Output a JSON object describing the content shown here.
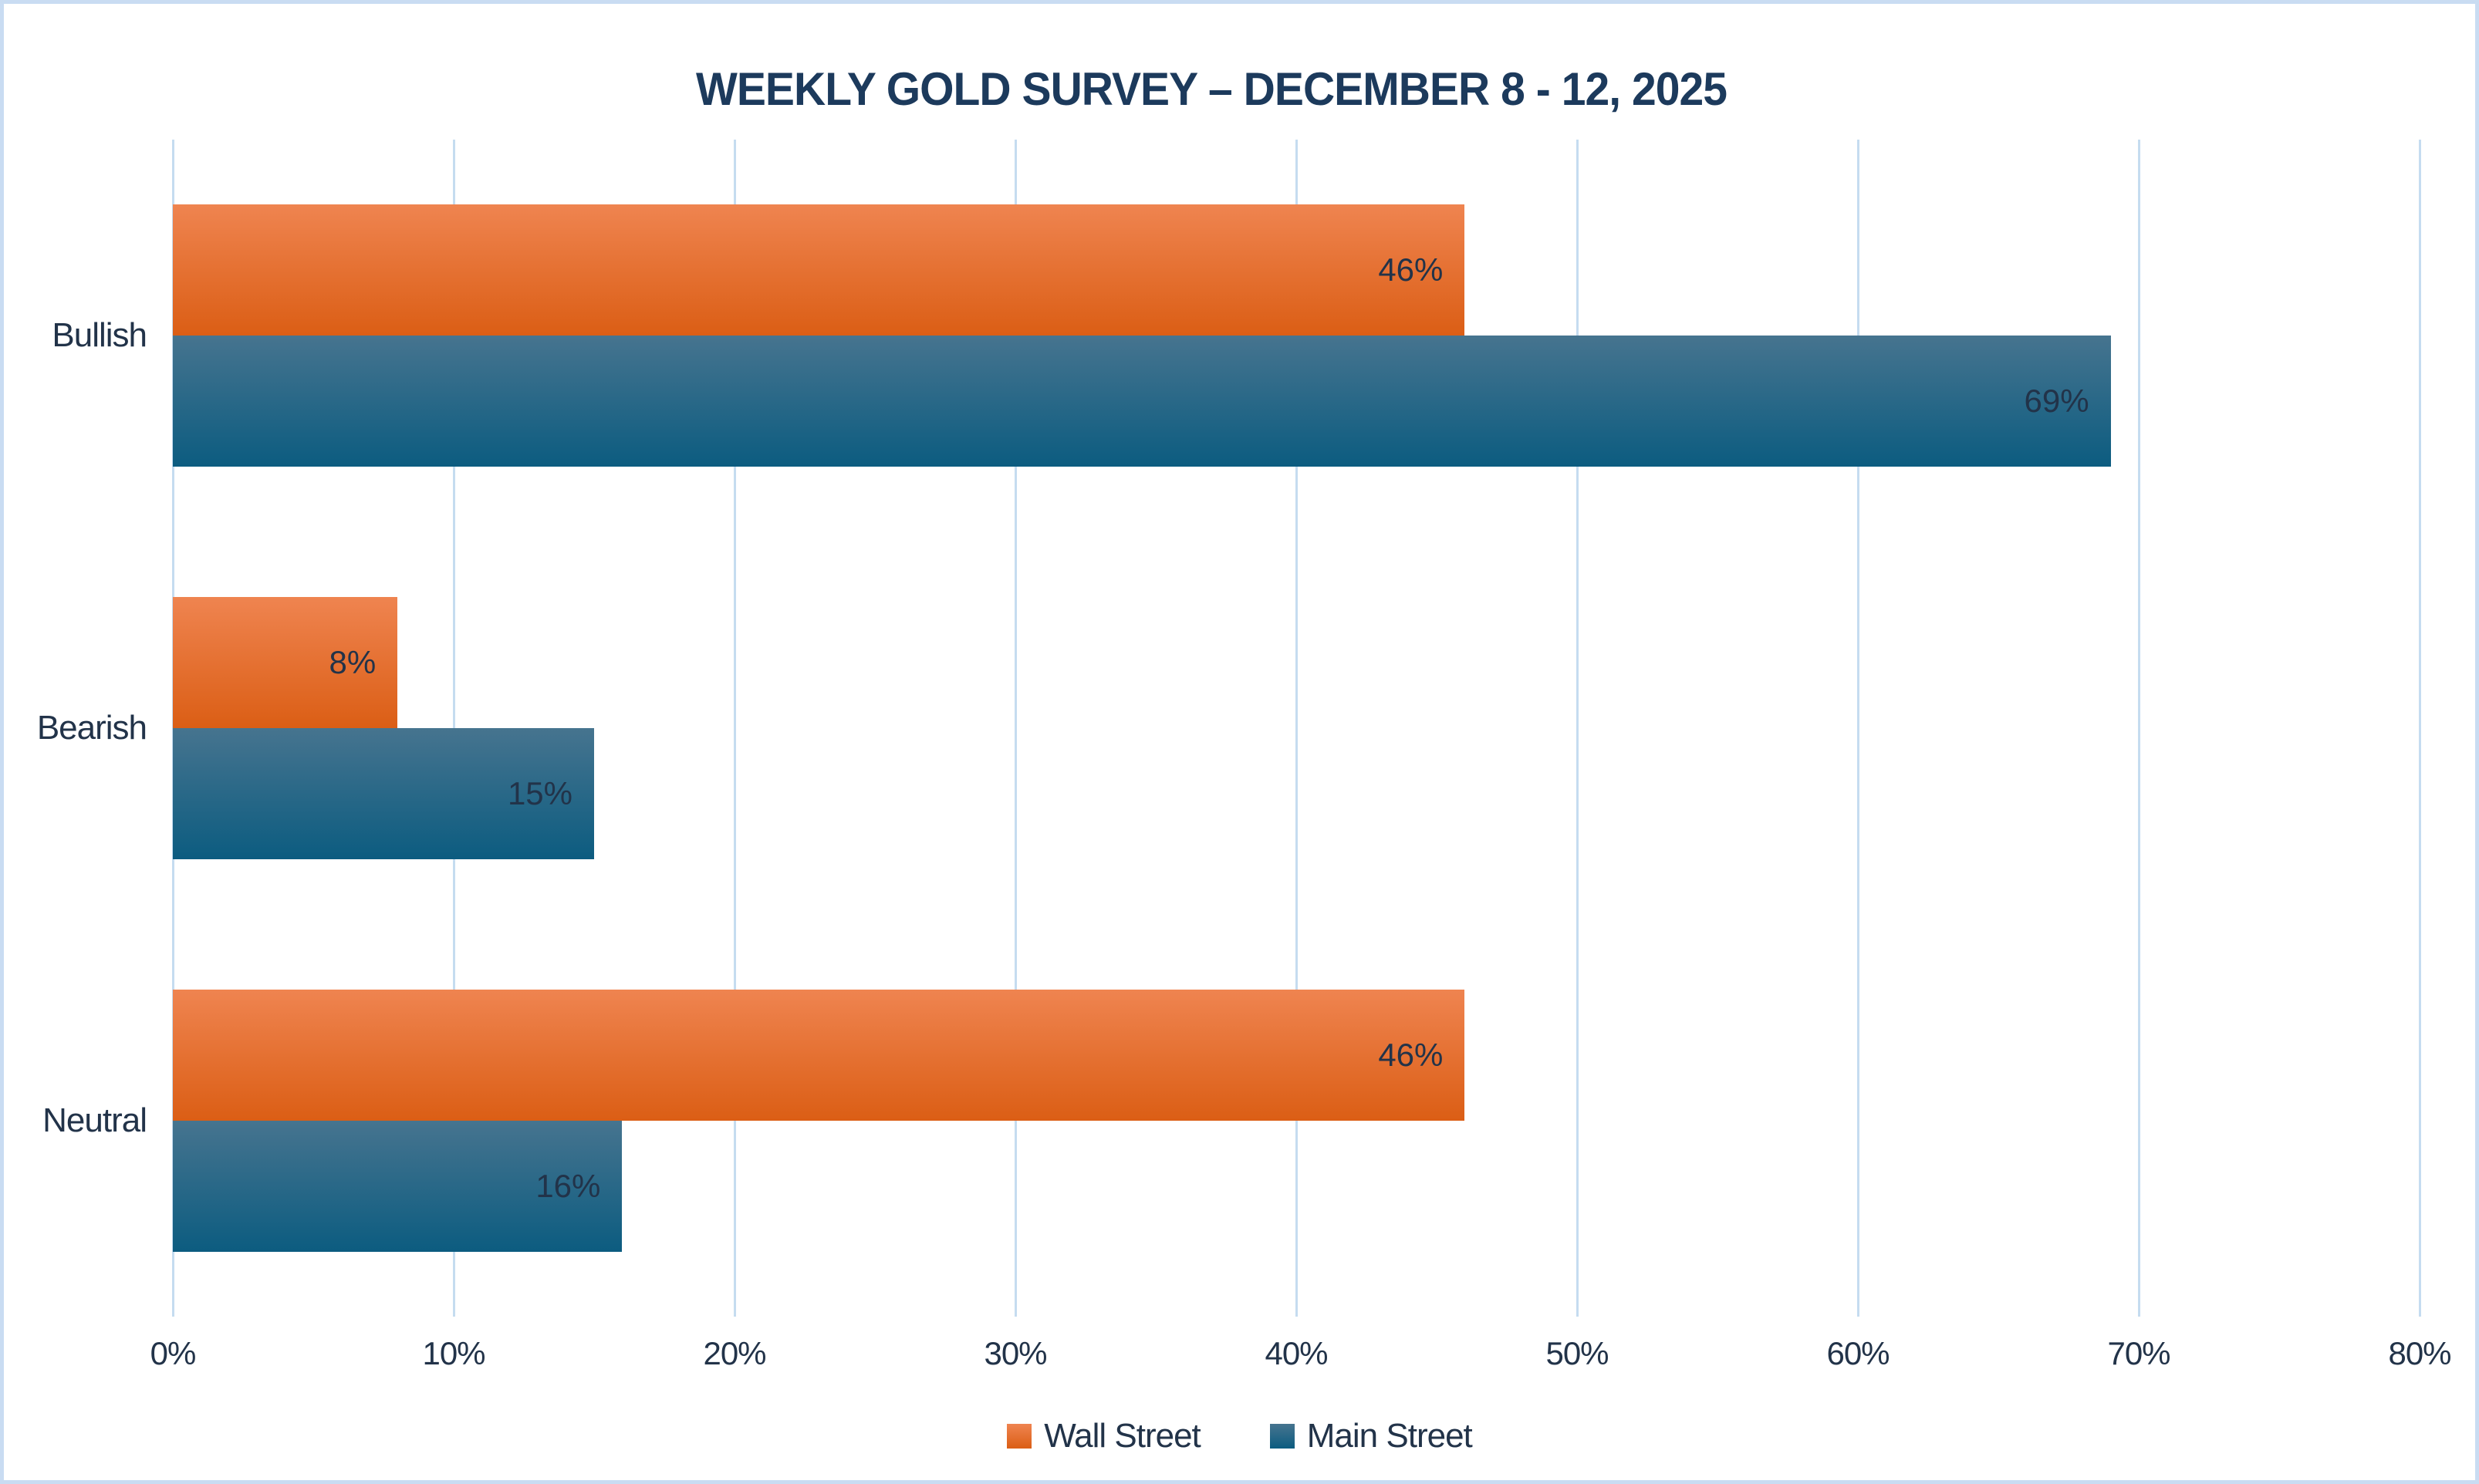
{
  "chart_data": {
    "type": "bar",
    "orientation": "horizontal",
    "title": "WEEKLY GOLD SURVEY – DECEMBER 8 - 12, 2025",
    "categories": [
      "Bullish",
      "Bearish",
      "Neutral"
    ],
    "series": [
      {
        "name": "Wall Street",
        "values": [
          46,
          8,
          46
        ],
        "value_labels": [
          "46%",
          "8%",
          "46%"
        ]
      },
      {
        "name": "Main Street",
        "values": [
          69,
          15,
          16
        ],
        "value_labels": [
          "69%",
          "15%",
          "16%"
        ]
      }
    ],
    "xlim": [
      0,
      80
    ],
    "x_tick_step": 10,
    "x_tick_labels": [
      "0%",
      "10%",
      "20%",
      "30%",
      "40%",
      "50%",
      "60%",
      "70%",
      "80%"
    ],
    "grid": true,
    "legend_position": "bottom"
  },
  "colors": {
    "wall_street_gradient_top": "#EF8450",
    "wall_street_gradient_bottom": "#DB5E15",
    "main_street_gradient_top": "#46748F",
    "main_street_gradient_bottom": "#0C5C80",
    "title_text": "#1C3A5C",
    "label_text": "#223349",
    "gridline": "#C5DCF0",
    "frame_border": "#C9DCF2",
    "background": "#FFFFFF"
  }
}
